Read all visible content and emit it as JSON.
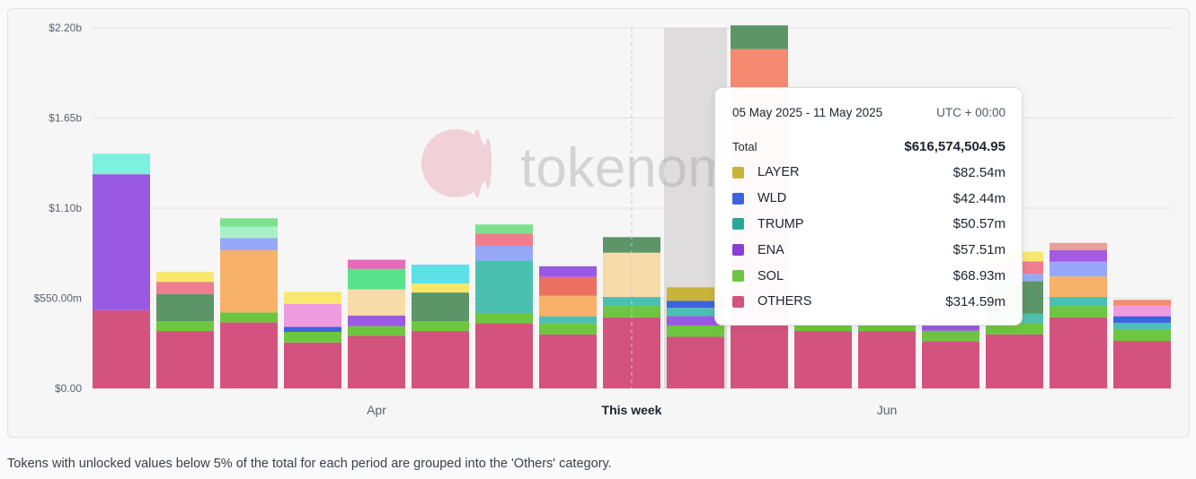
{
  "watermark": "tokenomist",
  "footnote": "Tokens with unlocked values below 5% of the total for each period are grouped into the 'Others' category.",
  "colors": {
    "OTHERS": "#d3537e",
    "SOL": "#6dc63f",
    "LAYER": "#c8b43a",
    "WLD": "#3e63dd",
    "TRUMP": "#27a899",
    "ENA": "#8a3fd6"
  },
  "tooltip": {
    "range": "05 May 2025 - 11 May 2025",
    "timezone": "UTC + 00:00",
    "total_label": "Total",
    "total_value": "$616,574,504.95",
    "rows": [
      {
        "name": "LAYER",
        "value": "$82.54m",
        "color": "#c8b43a"
      },
      {
        "name": "WLD",
        "value": "$42.44m",
        "color": "#3e63dd"
      },
      {
        "name": "TRUMP",
        "value": "$50.57m",
        "color": "#27a899"
      },
      {
        "name": "ENA",
        "value": "$57.51m",
        "color": "#8a3fd6"
      },
      {
        "name": "SOL",
        "value": "$68.93m",
        "color": "#6dc63f"
      },
      {
        "name": "OTHERS",
        "value": "$314.59m",
        "color": "#d3537e"
      }
    ]
  },
  "chart_data": {
    "type": "bar",
    "stacked": true,
    "y_tick_labels": [
      "$0.00",
      "$550.00m",
      "$1.10b",
      "$1.65b",
      "$2.20b"
    ],
    "y_ticks": [
      0,
      550,
      1100,
      1650,
      2200
    ],
    "ylim": [
      0,
      2200
    ],
    "y_unit": "millions USD",
    "x_tick_labels": [
      {
        "label": "Apr",
        "index": 4,
        "bold": false
      },
      {
        "label": "This week",
        "index": 8,
        "bold": true
      },
      {
        "label": "Jun",
        "index": 12,
        "bold": false
      }
    ],
    "highlight_index": 9,
    "current_week_index": 8,
    "grid": true,
    "segments_bottom_to_top": [
      [
        {
          "v": 477,
          "c": "#d3537e"
        },
        {
          "v": 830,
          "c": "#9a59e2"
        },
        {
          "v": 125,
          "c": "#7cf2de"
        }
      ],
      [
        {
          "v": 350,
          "c": "#d3537e"
        },
        {
          "v": 60,
          "c": "#6dc63f"
        },
        {
          "v": 165,
          "c": "#5c9568"
        },
        {
          "v": 75,
          "c": "#f07c90"
        },
        {
          "v": 60,
          "c": "#f7e86c"
        }
      ],
      [
        {
          "v": 403,
          "c": "#d3537e"
        },
        {
          "v": 60,
          "c": "#6dc63f"
        },
        {
          "v": 380,
          "c": "#f7b168"
        },
        {
          "v": 75,
          "c": "#98a8f8"
        },
        {
          "v": 70,
          "c": "#a8f0c8"
        },
        {
          "v": 50,
          "c": "#7de08c"
        }
      ],
      [
        {
          "v": 280,
          "c": "#d3537e"
        },
        {
          "v": 65,
          "c": "#6dc63f"
        },
        {
          "v": 30,
          "c": "#3e63dd"
        },
        {
          "v": 140,
          "c": "#ef9be0"
        },
        {
          "v": 75,
          "c": "#f7e86c"
        }
      ],
      [
        {
          "v": 320,
          "c": "#d3537e"
        },
        {
          "v": 60,
          "c": "#6dc63f"
        },
        {
          "v": 65,
          "c": "#9a59e2"
        },
        {
          "v": 160,
          "c": "#f7dba8"
        },
        {
          "v": 125,
          "c": "#58e28c"
        },
        {
          "v": 55,
          "c": "#e86ab8"
        }
      ],
      [
        {
          "v": 350,
          "c": "#d3537e"
        },
        {
          "v": 60,
          "c": "#6dc63f"
        },
        {
          "v": 175,
          "c": "#5c9568"
        },
        {
          "v": 55,
          "c": "#f7e86c"
        },
        {
          "v": 115,
          "c": "#5de0e6"
        }
      ],
      [
        {
          "v": 397,
          "c": "#d3537e"
        },
        {
          "v": 63,
          "c": "#6dc63f"
        },
        {
          "v": 320,
          "c": "#4cc0b0"
        },
        {
          "v": 90,
          "c": "#98a8f8"
        },
        {
          "v": 75,
          "c": "#f07c90"
        },
        {
          "v": 55,
          "c": "#7de08c"
        }
      ],
      [
        {
          "v": 330,
          "c": "#d3537e"
        },
        {
          "v": 65,
          "c": "#6dc63f"
        },
        {
          "v": 45,
          "c": "#4cc0b0"
        },
        {
          "v": 125,
          "c": "#f7b168"
        },
        {
          "v": 115,
          "c": "#ec7060"
        },
        {
          "v": 65,
          "c": "#9a59e2"
        }
      ],
      [
        {
          "v": 433,
          "c": "#d3537e"
        },
        {
          "v": 70,
          "c": "#6dc63f"
        },
        {
          "v": 55,
          "c": "#4cc0b0"
        },
        {
          "v": 270,
          "c": "#f7dba8"
        },
        {
          "v": 95,
          "c": "#5c9568"
        }
      ],
      [
        {
          "v": 314.59,
          "c": "#d3537e"
        },
        {
          "v": 68.93,
          "c": "#6dc63f"
        },
        {
          "v": 57.51,
          "c": "#9a59e2"
        },
        {
          "v": 50.57,
          "c": "#4cc0b0"
        },
        {
          "v": 42.44,
          "c": "#3e63dd"
        },
        {
          "v": 82.54,
          "c": "#c8b43a"
        }
      ],
      [
        {
          "v": 1100,
          "c": "#d3537e"
        },
        {
          "v": 290,
          "c": "#d3537e"
        },
        {
          "v": 680,
          "c": "#f58a70"
        },
        {
          "v": 145,
          "c": "#5c9568"
        }
      ],
      [
        {
          "v": 350,
          "c": "#d3537e"
        },
        {
          "v": 70,
          "c": "#6dc63f"
        }
      ],
      [
        {
          "v": 350,
          "c": "#d3537e"
        },
        {
          "v": 70,
          "c": "#6dc63f"
        }
      ],
      [
        {
          "v": 287,
          "c": "#d3537e"
        },
        {
          "v": 65,
          "c": "#6dc63f"
        },
        {
          "v": 70,
          "c": "#9a59e2"
        }
      ],
      [
        {
          "v": 330,
          "c": "#d3537e"
        },
        {
          "v": 70,
          "c": "#6dc63f"
        },
        {
          "v": 55,
          "c": "#4cc0b0"
        },
        {
          "v": 200,
          "c": "#5c9568"
        },
        {
          "v": 45,
          "c": "#98a8f8"
        },
        {
          "v": 75,
          "c": "#f07c90"
        },
        {
          "v": 60,
          "c": "#f7e86c"
        }
      ],
      [
        {
          "v": 433,
          "c": "#d3537e"
        },
        {
          "v": 70,
          "c": "#6dc63f"
        },
        {
          "v": 55,
          "c": "#4cc0b0"
        },
        {
          "v": 125,
          "c": "#f7b168"
        },
        {
          "v": 90,
          "c": "#98a8f8"
        },
        {
          "v": 70,
          "c": "#a35ae6"
        },
        {
          "v": 45,
          "c": "#e8a09a"
        }
      ],
      [
        {
          "v": 290,
          "c": "#d3537e"
        },
        {
          "v": 70,
          "c": "#6dc63f"
        },
        {
          "v": 40,
          "c": "#4cc0b0"
        },
        {
          "v": 40,
          "c": "#3e63dd"
        },
        {
          "v": 65,
          "c": "#ef9be0"
        },
        {
          "v": 35,
          "c": "#f58a70"
        }
      ]
    ]
  }
}
